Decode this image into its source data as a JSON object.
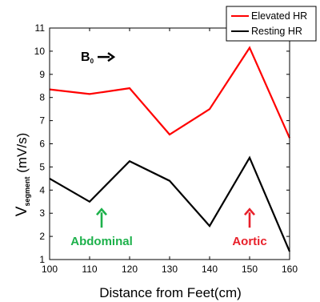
{
  "chart_data": {
    "type": "line",
    "x": [
      100,
      110,
      120,
      130,
      140,
      150,
      160
    ],
    "series": [
      {
        "name": "Elevated HR",
        "color": "#ff0000",
        "values": [
          8.35,
          8.15,
          8.4,
          6.4,
          7.5,
          10.15,
          6.25
        ]
      },
      {
        "name": "Resting HR",
        "color": "#000000",
        "values": [
          4.5,
          3.5,
          5.25,
          4.4,
          2.45,
          5.4,
          1.35
        ]
      }
    ],
    "xlabel": "Distance from Feet(cm)",
    "ylabel": {
      "main": "V",
      "sub": "segment",
      "unit": " (mV/s)"
    },
    "xlim": [
      100,
      160
    ],
    "ylim": [
      1,
      11
    ],
    "xticks": [
      100,
      110,
      120,
      130,
      140,
      150,
      160
    ],
    "yticks": [
      1,
      2,
      3,
      4,
      5,
      6,
      7,
      8,
      9,
      10,
      11
    ],
    "legend_position": "top-right",
    "annotations": [
      {
        "name": "b0",
        "label": "B",
        "sub": "0",
        "color": "#000000",
        "arrow": "right",
        "x": 115,
        "y": 9.75
      },
      {
        "name": "abdominal",
        "label": "Abdominal",
        "color": "#1db14b",
        "arrow": "up",
        "x": 113,
        "y": 3
      },
      {
        "name": "aortic",
        "label": "Aortic",
        "color": "#e8202a",
        "arrow": "up",
        "x": 150,
        "y": 3
      }
    ]
  }
}
